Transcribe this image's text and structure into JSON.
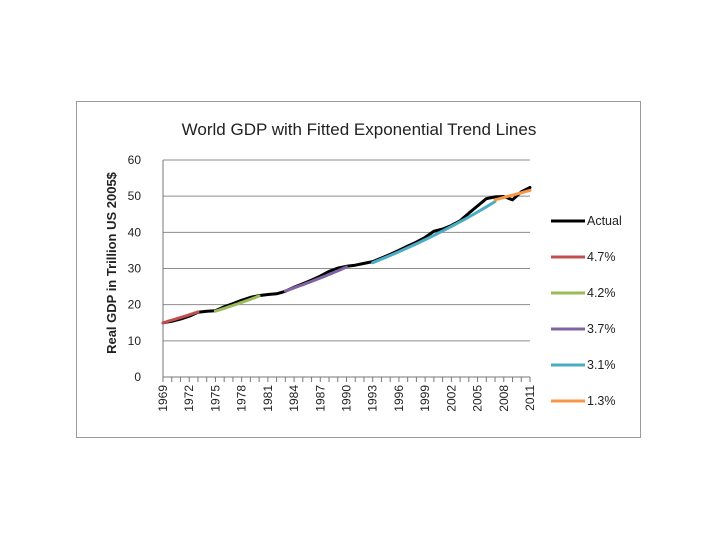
{
  "chart_data": {
    "type": "line",
    "title": "World GDP with Fitted Exponential Trend Lines",
    "xlabel": "",
    "ylabel": "Real GDP in Trillion US 2005$",
    "ylim": [
      0,
      60
    ],
    "yticks": [
      0,
      10,
      20,
      30,
      40,
      50,
      60
    ],
    "x_tick_labels": [
      "1969",
      "1972",
      "1975",
      "1978",
      "1981",
      "1984",
      "1987",
      "1990",
      "1993",
      "1996",
      "1999",
      "2002",
      "2005",
      "2008",
      "2011"
    ],
    "x_range": [
      1969,
      2011
    ],
    "grid": true,
    "legend_position": "right",
    "actual": {
      "name": "Actual",
      "color": "#000000",
      "x": [
        1969,
        1970,
        1971,
        1972,
        1973,
        1974,
        1975,
        1976,
        1977,
        1978,
        1979,
        1980,
        1981,
        1982,
        1983,
        1984,
        1985,
        1986,
        1987,
        1988,
        1989,
        1990,
        1991,
        1992,
        1993,
        1994,
        1995,
        1996,
        1997,
        1998,
        1999,
        2000,
        2001,
        2002,
        2003,
        2004,
        2005,
        2006,
        2007,
        2008,
        2009,
        2010,
        2011
      ],
      "y": [
        15.0,
        15.4,
        16.0,
        16.8,
        17.9,
        18.2,
        18.3,
        19.4,
        20.3,
        21.2,
        22.0,
        22.5,
        22.8,
        23.0,
        23.7,
        24.8,
        25.8,
        26.8,
        27.9,
        29.2,
        30.1,
        30.6,
        30.9,
        31.4,
        31.9,
        32.9,
        33.9,
        35.0,
        36.2,
        37.3,
        38.6,
        40.3,
        40.9,
        41.9,
        43.2,
        45.3,
        47.3,
        49.3,
        49.8,
        49.9,
        49.0,
        51.2,
        52.4
      ]
    },
    "series": [
      {
        "name": "4.7%",
        "color": "#c0504d",
        "x": [
          1969,
          1973
        ],
        "y": [
          15.0,
          18.0
        ]
      },
      {
        "name": "4.2%",
        "color": "#9bbb59",
        "x": [
          1975,
          1980
        ],
        "y": [
          18.2,
          22.4
        ]
      },
      {
        "name": "3.7%",
        "color": "#8064a2",
        "x": [
          1983,
          1990
        ],
        "y": [
          23.8,
          30.4
        ]
      },
      {
        "name": "3.1%",
        "color": "#4bacc6",
        "x": [
          1993,
          2007
        ],
        "y": [
          31.6,
          48.5
        ]
      },
      {
        "name": "1.3%",
        "color": "#f79646",
        "x": [
          2007,
          2011
        ],
        "y": [
          49.0,
          51.6
        ]
      }
    ]
  }
}
